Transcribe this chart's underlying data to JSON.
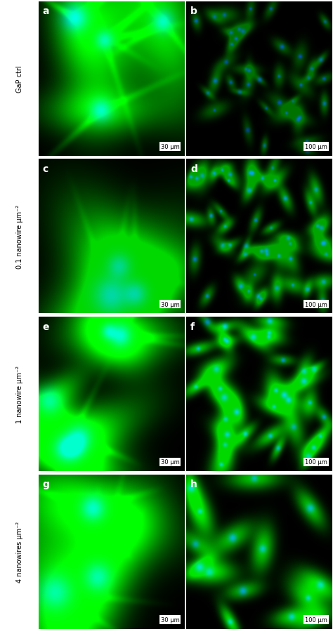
{
  "panel_labels": [
    "a",
    "b",
    "c",
    "d",
    "e",
    "f",
    "g",
    "h"
  ],
  "row_labels": [
    "GaP ctrl",
    "0.1 nanowire μm⁻²",
    "1 nanowire μm⁻²",
    "4 nanowires μm⁻²"
  ],
  "scale_labels_left": [
    "30 μm",
    "30 μm",
    "30 μm",
    "30 μm"
  ],
  "scale_labels_right": [
    "100 μm",
    "100 μm",
    "100 μm",
    "100 μm"
  ],
  "figure_bg": "#ffffff",
  "panels": [
    {
      "n": 4,
      "sz": [
        40,
        70
      ],
      "seed": 1,
      "gs": 1.0,
      "bs": 0.9,
      "isz": 128,
      "ext": true
    },
    {
      "n": 40,
      "sz": [
        10,
        20
      ],
      "seed": 2,
      "gs": 0.45,
      "bs": 0.8,
      "isz": 200,
      "ext": false
    },
    {
      "n": 3,
      "sz": [
        45,
        80
      ],
      "seed": 3,
      "gs": 0.85,
      "bs": 0.65,
      "isz": 128,
      "ext": true
    },
    {
      "n": 50,
      "sz": [
        10,
        22
      ],
      "seed": 4,
      "gs": 0.65,
      "bs": 0.9,
      "isz": 200,
      "ext": false
    },
    {
      "n": 6,
      "sz": [
        32,
        60
      ],
      "seed": 5,
      "gs": 1.0,
      "bs": 0.8,
      "isz": 128,
      "ext": true
    },
    {
      "n": 35,
      "sz": [
        14,
        28
      ],
      "seed": 6,
      "gs": 0.85,
      "bs": 0.9,
      "isz": 200,
      "ext": false
    },
    {
      "n": 3,
      "sz": [
        45,
        80
      ],
      "seed": 7,
      "gs": 1.0,
      "bs": 0.8,
      "isz": 128,
      "ext": true
    },
    {
      "n": 15,
      "sz": [
        18,
        38
      ],
      "seed": 8,
      "gs": 0.9,
      "bs": 0.9,
      "isz": 200,
      "ext": false
    }
  ]
}
